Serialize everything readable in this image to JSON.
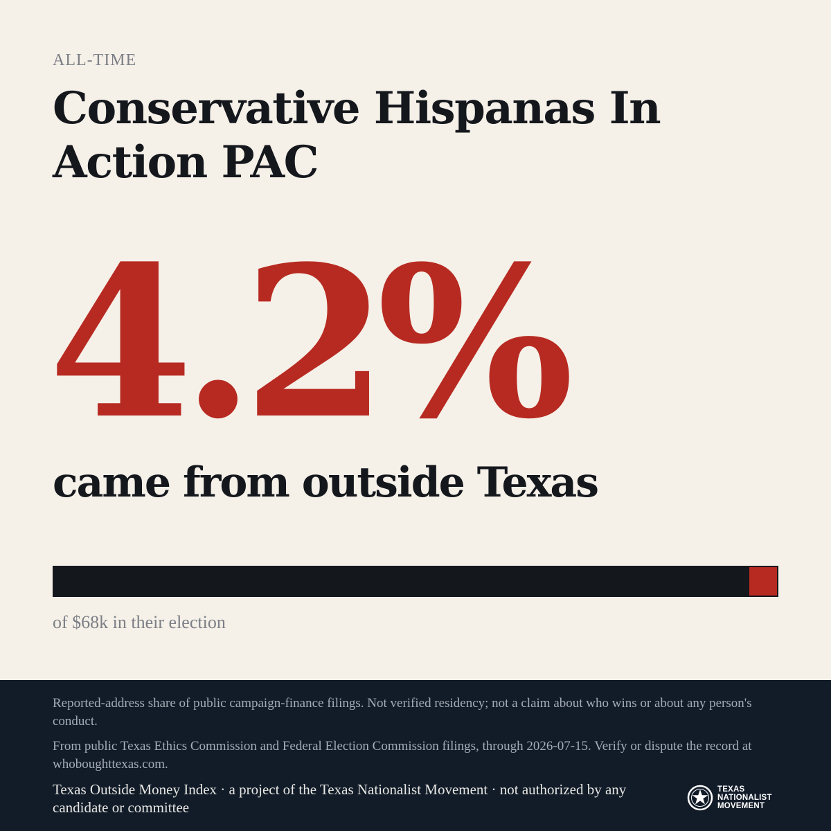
{
  "header": {
    "eyebrow": "ALL-TIME",
    "title": "Conservative Hispanas In Action PAC"
  },
  "stat": {
    "value": "4.2%",
    "caption": "came from outside Texas"
  },
  "bar": {
    "outside_share": 0.042,
    "note": "of $68k in their election"
  },
  "footer": {
    "disclaimer": "Reported-address share of public campaign-finance filings. Not verified residency; not a claim about who wins or about any person's conduct.",
    "source": "From public Texas Ethics Commission and Federal Election Commission filings, through 2026-07-15. Verify or dispute the record at whoboughttexas.com.",
    "credit": "Texas Outside Money Index · a project of the Texas Nationalist Movement · not authorized by any candidate or committee",
    "logo_lines": [
      "TEXAS",
      "NATIONALIST",
      "MOVEMENT"
    ]
  },
  "colors": {
    "background": "#f5f0e8",
    "accent": "#b72a21",
    "ink": "#14171c",
    "footer_background": "#121c29"
  }
}
